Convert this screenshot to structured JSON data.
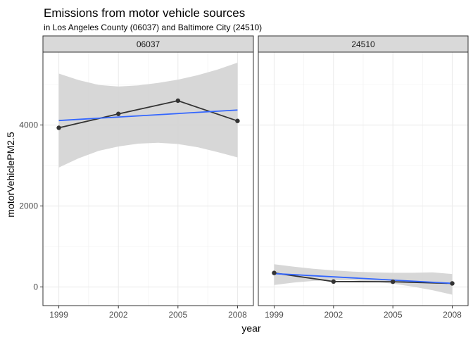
{
  "chart_data": {
    "type": "line",
    "title": "Emissions from motor vehicle sources",
    "subtitle": "in Los Angeles County (06037) and Baltimore City (24510)",
    "xlabel": "year",
    "ylabel": "motorVehiclePM2.5",
    "x_ticks": [
      "1999",
      "2002",
      "2005",
      "2008"
    ],
    "y_ticks": [
      "0",
      "2000",
      "4000"
    ],
    "xlim": [
      1998.2,
      2008.8
    ],
    "ylim": [
      -460,
      5800
    ],
    "grid": true,
    "colors": {
      "points_line": "#333333",
      "smooth": "#3366FF",
      "ribbon": "#d3d3d3",
      "strip_bg": "#d9d9d9"
    },
    "facets": [
      {
        "label": "06037",
        "x": [
          1999,
          2002,
          2005,
          2008
        ],
        "y": [
          3931,
          4274,
          4601,
          4101
        ],
        "smooth": {
          "y_start": 4110,
          "y_end": 4370
        },
        "ribbon": {
          "x": [
            1999,
            2000,
            2001,
            2002,
            2003,
            2004,
            2005,
            2006,
            2007,
            2008
          ],
          "lower": [
            2950,
            3180,
            3360,
            3470,
            3540,
            3560,
            3530,
            3450,
            3330,
            3200
          ],
          "upper": [
            5270,
            5110,
            4990,
            4950,
            4980,
            5040,
            5120,
            5230,
            5370,
            5540
          ]
        }
      },
      {
        "label": "24510",
        "x": [
          1999,
          2002,
          2005,
          2008
        ],
        "y": [
          347,
          134,
          130,
          88
        ],
        "smooth": {
          "y_start": 330,
          "y_end": 90
        },
        "ribbon": {
          "x": [
            1999,
            2000,
            2001,
            2002,
            2003,
            2004,
            2005,
            2006,
            2007,
            2008
          ],
          "lower": [
            50,
            110,
            150,
            170,
            160,
            130,
            80,
            10,
            -80,
            -190
          ],
          "upper": [
            560,
            500,
            450,
            410,
            380,
            360,
            350,
            350,
            360,
            320
          ]
        }
      }
    ]
  }
}
